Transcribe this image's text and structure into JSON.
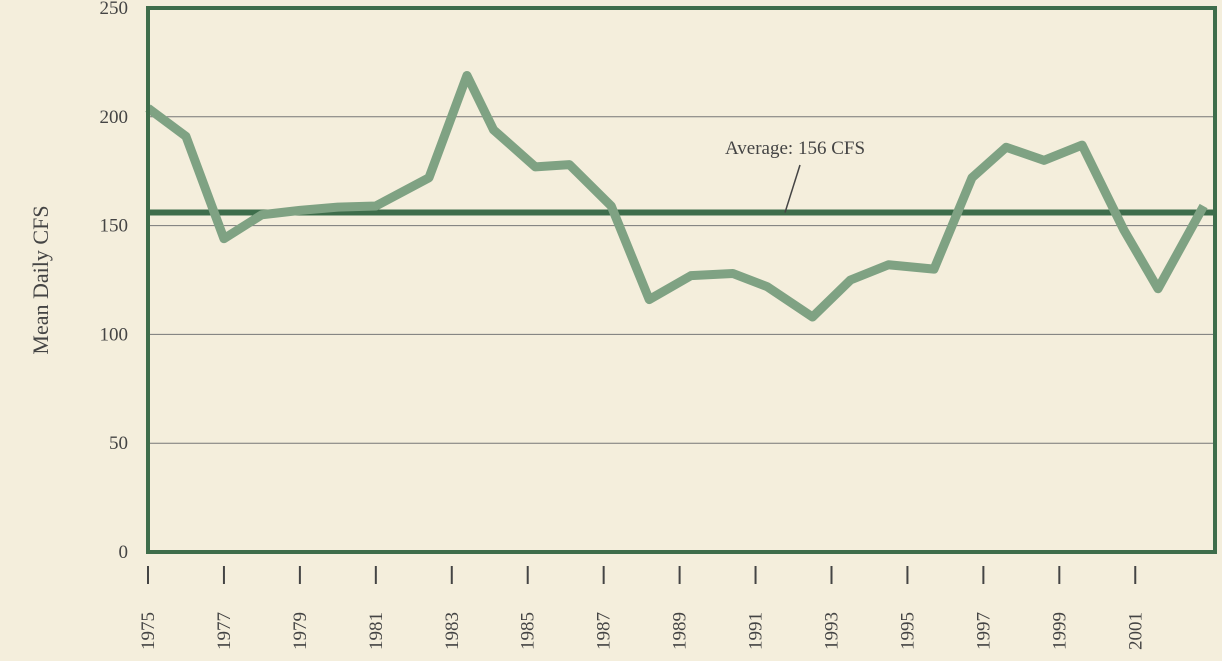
{
  "chart_data": {
    "type": "line",
    "y_label": "Mean Daily CFS",
    "annotation": "Average: 156 CFS",
    "average": 156,
    "x": [
      1975,
      1976,
      1977,
      1978,
      1979,
      1980,
      1981,
      1982.4,
      1983.4,
      1984.1,
      1985.2,
      1986.1,
      1987.2,
      1988.2,
      1989.3,
      1990.4,
      1991.3,
      1992.5,
      1993.5,
      1994.5,
      1995.7,
      1996.7,
      1997.6,
      1998.6,
      1999.6,
      2000.7,
      2001.6,
      2002.8
    ],
    "series": [
      {
        "color": "#7fa283",
        "values": [
          204,
          191,
          144,
          155,
          157,
          158.5,
          159,
          172,
          219,
          194,
          177,
          178,
          159,
          116,
          127,
          128,
          122,
          108,
          125,
          132,
          130,
          172,
          186,
          180,
          187,
          148,
          121,
          159
        ]
      }
    ],
    "xlim": [
      1975,
      2003.1
    ],
    "xticks": [
      1975,
      1977,
      1979,
      1981,
      1983,
      1985,
      1987,
      1989,
      1991,
      1993,
      1995,
      1997,
      1999,
      2001
    ],
    "ylim": [
      0,
      250
    ],
    "yticks": [
      0,
      50,
      100,
      150,
      200,
      250
    ],
    "grid": true,
    "frame_color": "#3e6d4b"
  }
}
